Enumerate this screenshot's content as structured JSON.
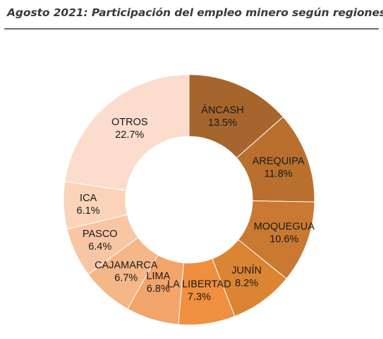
{
  "title": "Agosto 2021: Participación del empleo minero según regiones",
  "chart_data": {
    "type": "pie",
    "title": "Agosto 2021: Participación del empleo minero según regiones",
    "donut": true,
    "slices": [
      {
        "name": "ÁNCASH",
        "label": "13.5%",
        "value": 13.5,
        "color": "#a6652d"
      },
      {
        "name": "AREQUIPA",
        "label": "11.8%",
        "value": 11.8,
        "color": "#b9702f"
      },
      {
        "name": "MOQUEGUA",
        "label": "10.6%",
        "value": 10.6,
        "color": "#c97932"
      },
      {
        "name": "JUNÍN",
        "label": "8.2%",
        "value": 8.2,
        "color": "#db8434"
      },
      {
        "name": "LA LIBERTAD",
        "label": "7.3%",
        "value": 7.3,
        "color": "#f08f3f"
      },
      {
        "name": "LIMA",
        "label": "6.8%",
        "value": 6.8,
        "color": "#f3a46a"
      },
      {
        "name": "CAJAMARCA",
        "label": "6.7%",
        "value": 6.7,
        "color": "#f5b688"
      },
      {
        "name": "PASCO",
        "label": "6.4%",
        "value": 6.4,
        "color": "#f8c6a4"
      },
      {
        "name": "ICA",
        "label": "6.1%",
        "value": 6.1,
        "color": "#fad3b9"
      },
      {
        "name": "OTROS",
        "label": "22.7%",
        "value": 22.7,
        "color": "#fcdccc"
      }
    ]
  }
}
